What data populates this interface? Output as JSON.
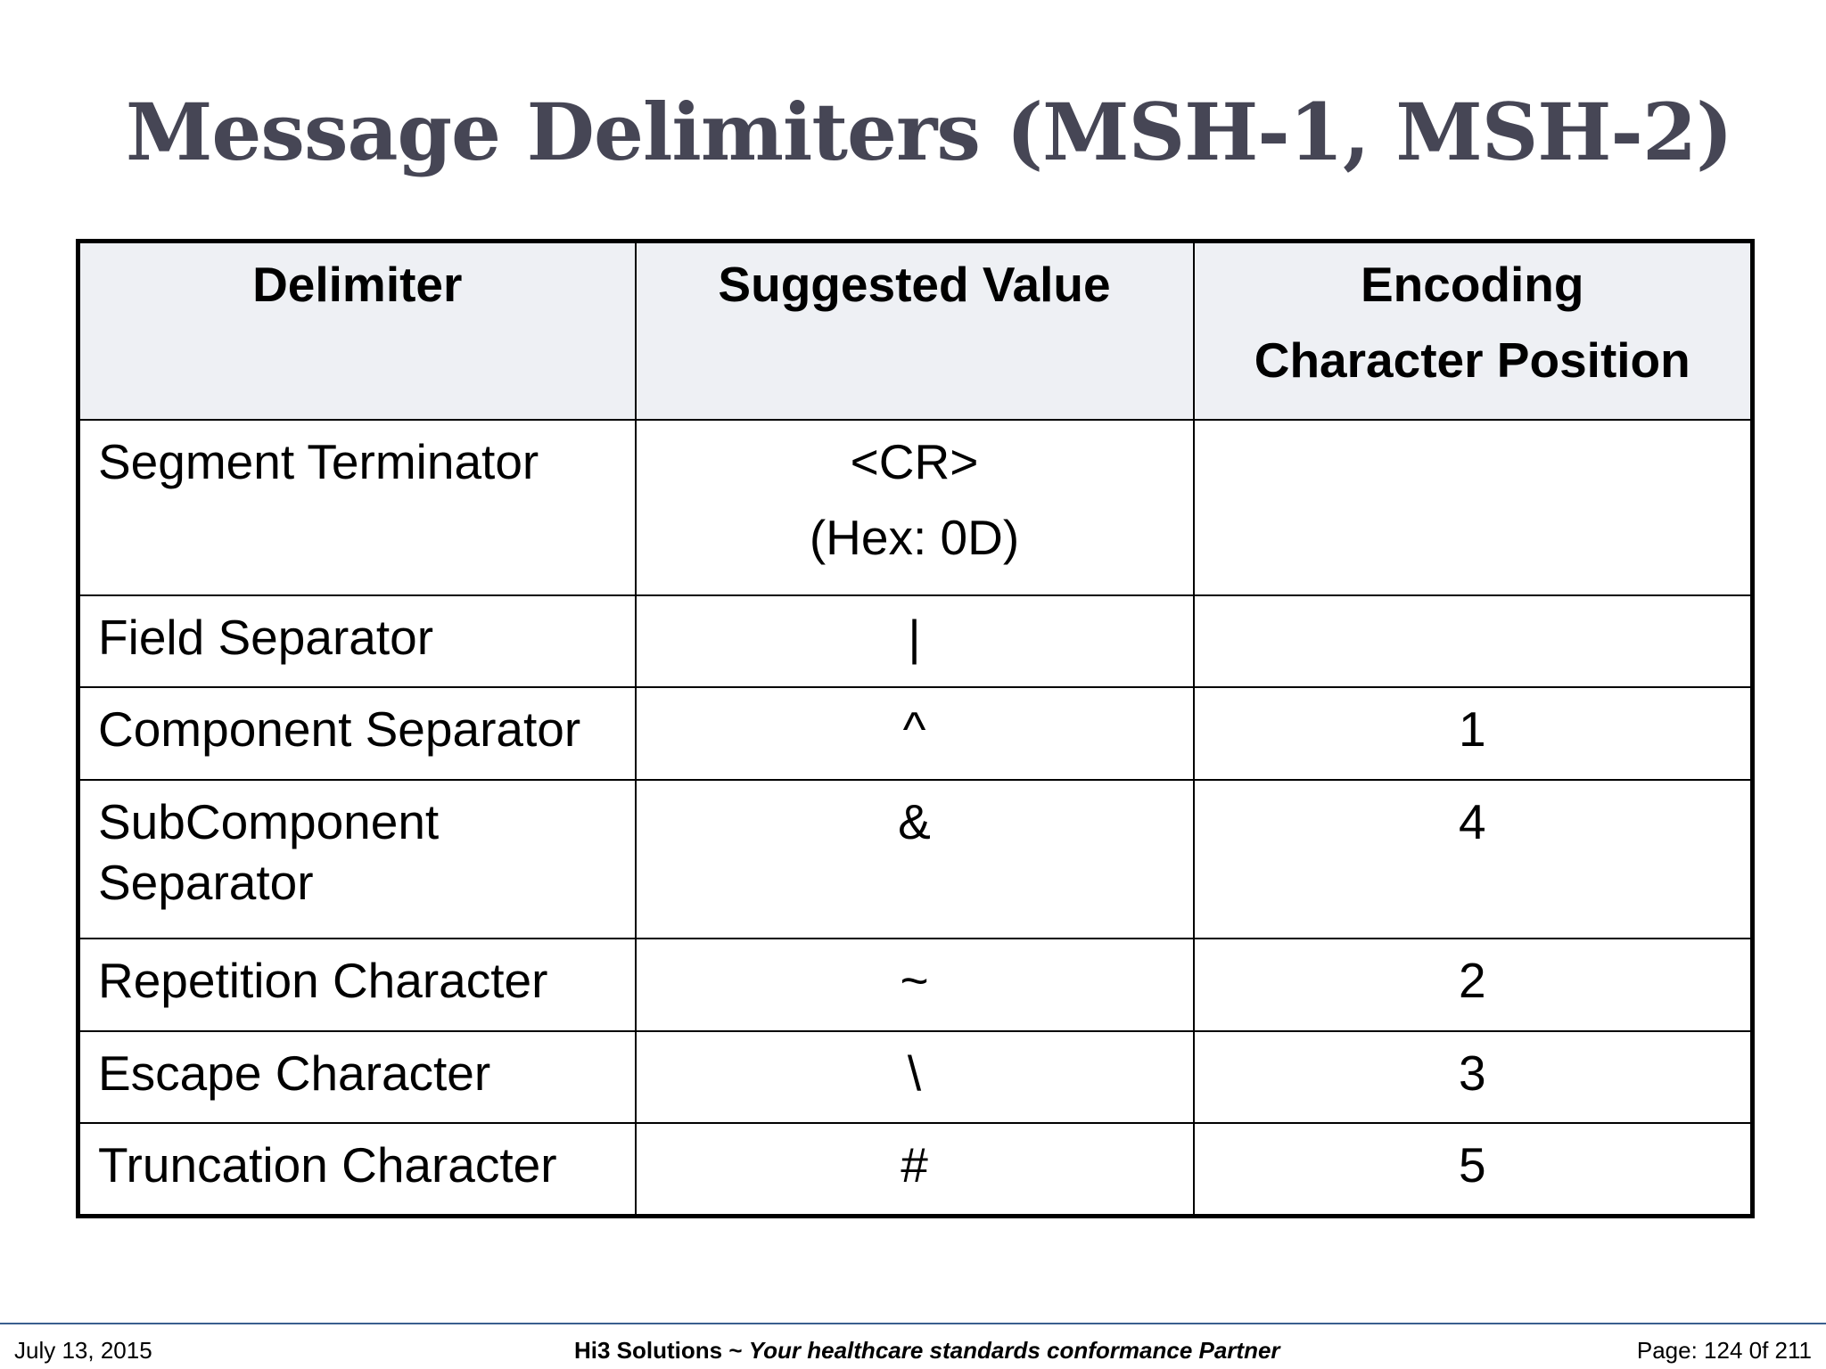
{
  "header": {
    "title": "Message Delimiters (MSH-1, MSH-2)"
  },
  "table": {
    "columns": [
      "Delimiter",
      "Suggested Value",
      [
        "Encoding",
        "Character Position"
      ]
    ],
    "rows": [
      [
        [
          "Segment Terminator"
        ],
        [
          "<CR>",
          "(Hex: 0D)"
        ],
        []
      ],
      [
        [
          "Field Separator"
        ],
        [
          "|"
        ],
        []
      ],
      [
        [
          "Component Separator"
        ],
        [
          "^"
        ],
        [
          1
        ]
      ],
      [
        [
          "SubComponent",
          "Separator"
        ],
        [
          "&"
        ],
        [
          4
        ]
      ],
      [
        [
          "Repetition Character"
        ],
        [
          "~"
        ],
        [
          2
        ]
      ],
      [
        [
          "Escape Character"
        ],
        [
          "\\"
        ],
        [
          3
        ]
      ],
      [
        [
          "Truncation Character"
        ],
        [
          "#"
        ],
        [
          5
        ]
      ]
    ]
  },
  "footer": {
    "date": "July 13, 2015",
    "company": "Hi3 Solutions ~",
    "tagline": "Your healthcare standards conformance Partner",
    "page": "Page: 124 0f 211"
  }
}
